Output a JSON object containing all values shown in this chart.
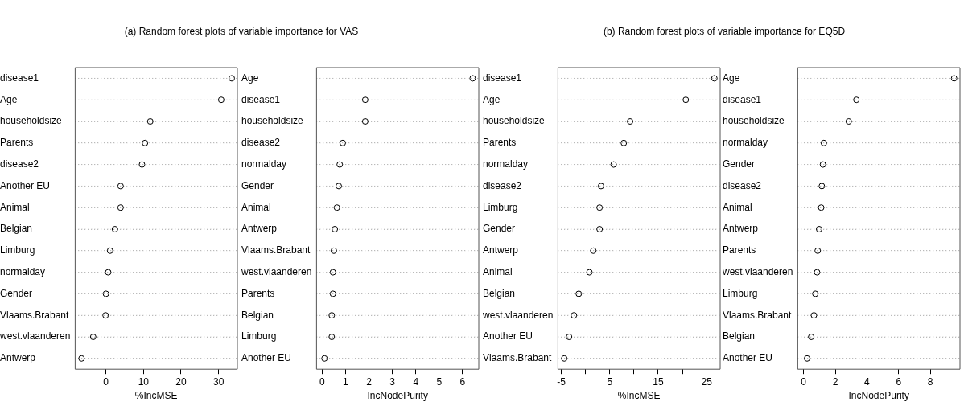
{
  "chart_data": [
    {
      "type": "scatter",
      "orientation": "horizontal",
      "title": "(a) Random forest plots of variable importance for VAS",
      "xlabel": "%IncMSE",
      "marker": "circle",
      "grid": "y",
      "color": "#000000",
      "categories": [
        "disease1",
        "Age",
        "householdsize",
        "Parents",
        "disease2",
        "Another EU",
        "Animal",
        "Belgian",
        "Limburg",
        "normalday",
        "Gender",
        "Vlaams.Brabant",
        "west.vlaanderen",
        "Antwerp"
      ],
      "values": [
        33.5,
        30.7,
        11.8,
        10.4,
        9.6,
        3.9,
        3.9,
        2.4,
        1.1,
        0.6,
        0,
        -0.1,
        -3.4,
        -6.5
      ],
      "xlim": [
        -8.2,
        35
      ],
      "xticks": [
        0,
        10,
        20,
        30
      ]
    },
    {
      "type": "scatter",
      "orientation": "horizontal",
      "xlabel": "IncNodePurity",
      "marker": "circle",
      "grid": "y",
      "color": "#000000",
      "categories": [
        "Age",
        "disease1",
        "householdsize",
        "disease2",
        "normalday",
        "Gender",
        "Animal",
        "Antwerp",
        "Vlaams.Brabant",
        "west.vlaanderen",
        "Parents",
        "Belgian",
        "Limburg",
        "Another EU"
      ],
      "values": [
        6.43,
        1.84,
        1.84,
        0.88,
        0.75,
        0.71,
        0.63,
        0.54,
        0.5,
        0.46,
        0.46,
        0.41,
        0.41,
        0.1
      ],
      "xlim": [
        -0.24,
        6.69
      ],
      "xticks": [
        0,
        1,
        2,
        3,
        4,
        5,
        6
      ]
    },
    {
      "type": "scatter",
      "orientation": "horizontal",
      "title": "(b) Random forest plots of variable importance for EQ5D",
      "xlabel": "%IncMSE",
      "marker": "circle",
      "grid": "y",
      "color": "#000000",
      "categories": [
        "disease1",
        "Age",
        "householdsize",
        "Parents",
        "normalday",
        "disease2",
        "Limburg",
        "Gender",
        "Antwerp",
        "Animal",
        "Belgian",
        "west.vlaanderen",
        "Another EU",
        "Vlaams.Brabant"
      ],
      "values": [
        26.6,
        20.7,
        9.2,
        7.9,
        5.8,
        3.2,
        2.9,
        2.9,
        1.6,
        0.8,
        -1.4,
        -2.4,
        -3.4,
        -4.4
      ],
      "xlim": [
        -5.7,
        27.8
      ],
      "xticks": [
        -5,
        {
          "value": 0,
          "label": null
        },
        5,
        {
          "value": 10,
          "label": null
        },
        15,
        {
          "value": 20,
          "label": null
        },
        25
      ]
    },
    {
      "type": "scatter",
      "orientation": "horizontal",
      "xlabel": "IncNodePurity",
      "marker": "circle",
      "grid": "y",
      "color": "#000000",
      "categories": [
        "Age",
        "disease1",
        "householdsize",
        "normalday",
        "Gender",
        "disease2",
        "Animal",
        "Antwerp",
        "Parents",
        "west.vlaanderen",
        "Limburg",
        "Vlaams.Brabant",
        "Belgian",
        "Another EU"
      ],
      "values": [
        9.5,
        3.33,
        2.85,
        1.28,
        1.22,
        1.15,
        1.11,
        0.98,
        0.89,
        0.85,
        0.74,
        0.65,
        0.48,
        0.22
      ],
      "xlim": [
        -0.37,
        9.87
      ],
      "xticks": [
        0,
        2,
        4,
        6,
        8
      ]
    }
  ]
}
